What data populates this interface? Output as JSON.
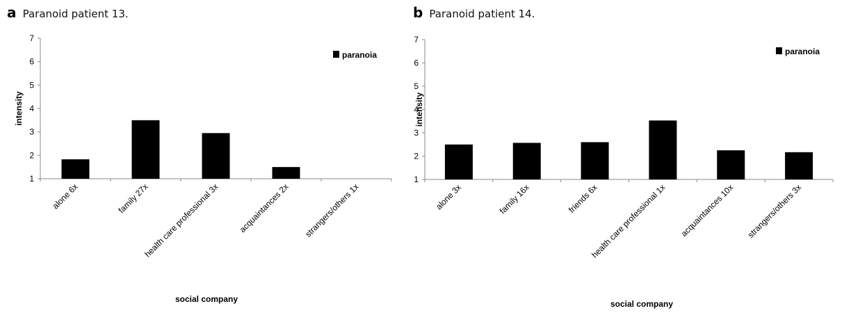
{
  "panels": [
    {
      "letter": "a",
      "title": "Paranoid patient  13.",
      "chart_data": {
        "type": "bar",
        "title": "Paranoid patient  13.",
        "xlabel": "social company",
        "ylabel": "intensity",
        "ylim": [
          1,
          7
        ],
        "yticks": [
          1,
          2,
          3,
          4,
          5,
          6,
          7
        ],
        "categories": [
          "alone 6x",
          "family 27x",
          "health care professional 3x",
          "acquaintances 2x",
          "strangers/others 1x"
        ],
        "series": [
          {
            "name": "paranoia",
            "color": "#000000",
            "values": [
              1.83,
              3.5,
              2.95,
              1.5,
              1.0
            ]
          }
        ],
        "legend": "top-right",
        "grid": false
      }
    },
    {
      "letter": "b",
      "title": "Paranoid patient 14.",
      "chart_data": {
        "type": "bar",
        "title": "Paranoid patient 14.",
        "xlabel": "social company",
        "ylabel": "intensity",
        "ylim": [
          1,
          7
        ],
        "yticks": [
          1,
          2,
          3,
          4,
          5,
          6,
          7
        ],
        "categories": [
          "alone 3x",
          "family 16x",
          "friends 6x",
          "health care professional 1x",
          "acquaintances 10x",
          "strangers/others 3x"
        ],
        "series": [
          {
            "name": "paranoia",
            "color": "#000000",
            "values": [
              2.5,
              2.57,
              2.6,
              3.53,
              2.25,
              2.17
            ]
          }
        ],
        "legend": "top-right",
        "grid": false
      }
    }
  ]
}
